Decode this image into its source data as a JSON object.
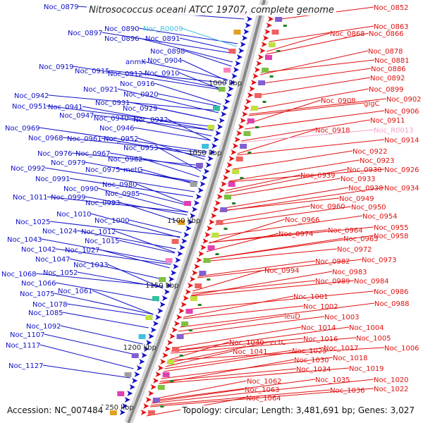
{
  "title": "Nitrosococcus oceani ATCC 19707, complete genome",
  "footer": {
    "accession": "Accession: NC_007484",
    "summary": "Topology: circular; Length: 3,481,691 bp; Genes: 3,027"
  },
  "colors": {
    "forward": "#1010c8",
    "reverse": "#e01010",
    "rna_forward": "#40c0e0",
    "rna_reverse": "#f0a0c8",
    "backbone": "#888888"
  },
  "scale_ticks": [
    "1000 kbp",
    "1050 kbp",
    "1100 kbp",
    "1150 kbp",
    "1200 kbp",
    "1250 kbp"
  ],
  "left_genes": [
    [
      "Noc_0879",
      62,
      9
    ],
    [
      "Noc_0890",
      148,
      40
    ],
    [
      "Noc_R0009",
      203,
      40,
      "rna"
    ],
    [
      "Noc_0897",
      96,
      46
    ],
    [
      "Noc_0896",
      148,
      54
    ],
    [
      "Noc_0891",
      206,
      54
    ],
    [
      "Noc_0898",
      213,
      72
    ],
    [
      "anmK",
      178,
      87
    ],
    [
      "Noc_0904",
      209,
      85
    ],
    [
      "Noc_0919",
      55,
      94
    ],
    [
      "Noc_0915",
      106,
      100
    ],
    [
      "Noc_0912",
      153,
      104
    ],
    [
      "Noc_0910",
      205,
      103
    ],
    [
      "Noc_0916",
      170,
      118
    ],
    [
      "Noc_0921",
      118,
      126
    ],
    [
      "Noc_0920",
      175,
      133
    ],
    [
      "Noc_0942",
      20,
      135
    ],
    [
      "Noc_0931",
      135,
      145
    ],
    [
      "Noc_0951",
      17,
      150
    ],
    [
      "Noc_0941",
      68,
      151
    ],
    [
      "Noc_0929",
      174,
      153
    ],
    [
      "Noc_0947",
      84,
      163
    ],
    [
      "Noc_0940",
      133,
      167
    ],
    [
      "Noc_0932",
      189,
      169
    ],
    [
      "Noc_0969",
      7,
      181
    ],
    [
      "Noc_0946",
      141,
      181
    ],
    [
      "Noc_0968",
      40,
      195
    ],
    [
      "Noc_0961",
      95,
      196
    ],
    [
      "Noc_0952",
      147,
      196
    ],
    [
      "Noc_0953",
      175,
      209
    ],
    [
      "Noc_0976",
      53,
      217
    ],
    [
      "Noc_0967",
      107,
      217
    ],
    [
      "Noc_0962",
      153,
      225
    ],
    [
      "Noc_0979",
      72,
      230
    ],
    [
      "Noc_0992",
      15,
      238
    ],
    [
      "Noc_0975",
      121,
      240
    ],
    [
      "metG",
      175,
      240
    ],
    [
      "Noc_0991",
      50,
      253
    ],
    [
      "Noc_0980",
      145,
      261
    ],
    [
      "Noc_0990",
      90,
      267
    ],
    [
      "Noc_0985",
      149,
      274
    ],
    [
      "Noc_1011",
      18,
      279
    ],
    [
      "Noc_0999",
      72,
      279
    ],
    [
      "Noc_0993",
      121,
      287
    ],
    [
      "Noc_1010",
      80,
      303
    ],
    [
      "Noc_1000",
      134,
      312
    ],
    [
      "Noc_1025",
      22,
      314
    ],
    [
      "Noc_1024",
      60,
      327
    ],
    [
      "Noc_1012",
      115,
      328
    ],
    [
      "Noc_1043",
      10,
      339
    ],
    [
      "Noc_1015",
      120,
      341
    ],
    [
      "Noc_1042",
      30,
      353
    ],
    [
      "Noc_1027",
      92,
      354
    ],
    [
      "Noc_1047",
      50,
      367
    ],
    [
      "Noc_1033",
      104,
      375
    ],
    [
      "Noc_1068",
      2,
      388
    ],
    [
      "Noc_1052",
      61,
      386
    ],
    [
      "Noc_1066",
      30,
      401
    ],
    [
      "Noc_1075",
      28,
      416
    ],
    [
      "Noc_1061",
      82,
      412
    ],
    [
      "Noc_1078",
      46,
      431
    ],
    [
      "Noc_1085",
      40,
      443
    ],
    [
      "Noc_1092",
      37,
      462
    ],
    [
      "Noc_1107",
      14,
      474
    ],
    [
      "Noc_1117",
      8,
      489
    ],
    [
      "Noc_1127",
      12,
      518
    ]
  ],
  "right_genes": [
    [
      "Noc_0852",
      530,
      10
    ],
    [
      "Noc_0863",
      530,
      37
    ],
    [
      "Noc_0868",
      468,
      47
    ],
    [
      "Noc_0866",
      523,
      47
    ],
    [
      "Noc_0878",
      522,
      72
    ],
    [
      "Noc_0881",
      531,
      85
    ],
    [
      "Noc_0886",
      526,
      97
    ],
    [
      "Noc_0892",
      525,
      110
    ],
    [
      "Noc_0899",
      523,
      126
    ],
    [
      "Noc_0908",
      455,
      142
    ],
    [
      "glgC",
      516,
      146
    ],
    [
      "Noc_0902",
      548,
      140
    ],
    [
      "Noc_0906",
      545,
      157
    ],
    [
      "Noc_0911",
      525,
      170
    ],
    [
      "Noc_0918",
      447,
      184
    ],
    [
      "Noc_R0013",
      530,
      184,
      "rna"
    ],
    [
      "Noc_0914",
      545,
      198
    ],
    [
      "Noc_0922",
      500,
      214
    ],
    [
      "Noc_0923",
      510,
      227
    ],
    [
      "Noc_0930",
      492,
      240
    ],
    [
      "Noc_0926",
      545,
      240
    ],
    [
      "Noc_0939",
      426,
      248
    ],
    [
      "Noc_0933",
      483,
      253
    ],
    [
      "Noc_0938",
      494,
      266
    ],
    [
      "Noc_0934",
      545,
      266
    ],
    [
      "Noc_0949",
      481,
      281
    ],
    [
      "Noc_0960",
      440,
      292
    ],
    [
      "Noc_0950",
      498,
      293
    ],
    [
      "Noc_0954",
      514,
      306
    ],
    [
      "Noc_0966",
      404,
      311
    ],
    [
      "Noc_0964",
      465,
      326
    ],
    [
      "Noc_0955",
      530,
      322
    ],
    [
      "Noc_0974",
      395,
      331
    ],
    [
      "Noc_0965",
      487,
      338
    ],
    [
      "Noc_0958",
      530,
      334
    ],
    [
      "Noc_0972",
      478,
      353
    ],
    [
      "Noc_0982",
      447,
      370
    ],
    [
      "Noc_0973",
      513,
      368
    ],
    [
      "Noc_0994",
      375,
      383
    ],
    [
      "Noc_0983",
      471,
      385
    ],
    [
      "Noc_0989",
      447,
      398
    ],
    [
      "Noc_0984",
      502,
      398
    ],
    [
      "Noc_0986",
      530,
      413
    ],
    [
      "Noc_1001",
      416,
      420
    ],
    [
      "Noc_0988",
      531,
      430
    ],
    [
      "Noc_1002",
      430,
      434
    ],
    [
      "leuD",
      403,
      448
    ],
    [
      "Noc_1003",
      460,
      449
    ],
    [
      "Noc_1014",
      427,
      464
    ],
    [
      "Noc_1004",
      495,
      464
    ],
    [
      "Noc_1016",
      430,
      480
    ],
    [
      "Noc_1005",
      505,
      479
    ],
    [
      "Noc_1040",
      325,
      485
    ],
    [
      "ectC",
      383,
      485
    ],
    [
      "Noc_1017",
      459,
      493
    ],
    [
      "Noc_1006",
      545,
      493
    ],
    [
      "Noc_1041",
      330,
      498
    ],
    [
      "Noc_1029",
      414,
      497
    ],
    [
      "Noc_1018",
      472,
      507
    ],
    [
      "Noc_1030",
      417,
      510
    ],
    [
      "Noc_1034",
      420,
      523
    ],
    [
      "Noc_1019",
      495,
      522
    ],
    [
      "Noc_1062",
      350,
      540
    ],
    [
      "Noc_1035",
      447,
      538
    ],
    [
      "Noc_1020",
      530,
      538
    ],
    [
      "Noc_1063",
      347,
      552
    ],
    [
      "Noc_1036",
      468,
      553
    ],
    [
      "Noc_1022",
      530,
      551
    ],
    [
      "Noc_1064",
      349,
      564
    ]
  ]
}
